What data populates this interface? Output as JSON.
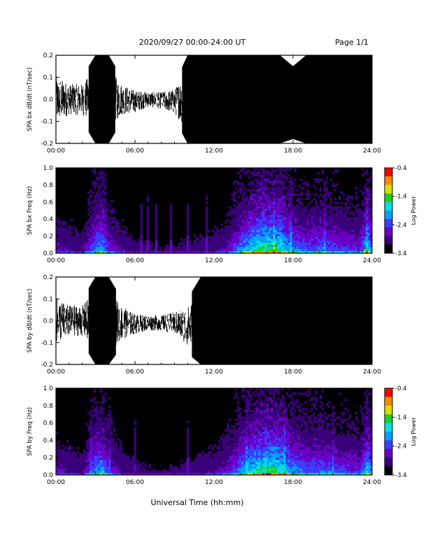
{
  "header": {
    "title": "2020/09/27  00:00-24:00 UT",
    "page": "Page 1/1"
  },
  "footer": {
    "xlabel": "Universal Time (hh:mm)"
  },
  "colors": {
    "waveform": "#000000",
    "spectrogram_background": "#000000",
    "colormap": [
      "#000000",
      "#3a007a",
      "#6a00c8",
      "#3c3cff",
      "#00a0ff",
      "#00e0e0",
      "#20d020",
      "#d8e000",
      "#ff8800",
      "#ff0000"
    ]
  },
  "chart_data": [
    {
      "type": "line",
      "ylabel": "SPA bx dB/dt (nT/sec)",
      "xlim": [
        0,
        24
      ],
      "ylim": [
        -0.2,
        0.2
      ],
      "xticks": [
        "00:00",
        "06:00",
        "12:00",
        "18:00",
        "24:00"
      ],
      "yticks": [
        "0.2",
        "0.1",
        "0.0",
        "-0.1",
        "-0.2"
      ],
      "series": [
        {
          "x_hours": [
            0,
            1,
            2,
            3,
            3.5,
            4,
            5,
            6,
            7,
            8,
            9,
            10,
            11,
            12,
            13,
            14,
            15,
            16,
            17,
            18,
            19,
            20,
            21,
            22,
            23,
            24
          ],
          "envelope_upper": [
            0.15,
            0.1,
            0.1,
            0.2,
            0.2,
            0.2,
            0.1,
            0.06,
            0.05,
            0.05,
            0.07,
            0.2,
            0.2,
            0.2,
            0.2,
            0.2,
            0.2,
            0.2,
            0.2,
            0.15,
            0.2,
            0.2,
            0.2,
            0.2,
            0.2,
            0.2
          ],
          "envelope_lower": [
            -0.15,
            -0.1,
            -0.1,
            -0.2,
            -0.2,
            -0.2,
            -0.1,
            -0.08,
            -0.05,
            -0.06,
            -0.09,
            -0.2,
            -0.2,
            -0.2,
            -0.2,
            -0.2,
            -0.2,
            -0.2,
            -0.2,
            -0.18,
            -0.2,
            -0.2,
            -0.2,
            -0.2,
            -0.2,
            -0.2
          ]
        }
      ]
    },
    {
      "type": "heatmap",
      "ylabel": "SPA bx Freq (Hz)",
      "colorbar_label": "Log Power",
      "xlim": [
        0,
        24
      ],
      "ylim": [
        0,
        1.0
      ],
      "clim": [
        -3.4,
        -0.4
      ],
      "xticks": [
        "00:00",
        "06:00",
        "12:00",
        "18:00",
        "24:00"
      ],
      "yticks": [
        "1.0",
        "0.8",
        "0.6",
        "0.4",
        "0.2",
        "0.0"
      ],
      "colorbar_ticks": [
        "-0.4",
        "-1.4",
        "-2.4",
        "-3.4"
      ],
      "activity_x_hours": [
        0,
        1,
        2,
        3,
        3.5,
        4,
        5,
        6,
        8,
        10,
        12,
        13,
        14,
        15,
        16,
        17,
        18,
        19,
        20,
        21,
        22,
        23,
        23.7,
        24
      ],
      "activity_level": [
        0.3,
        0.25,
        0.2,
        0.6,
        0.7,
        0.4,
        0.25,
        0.15,
        0.1,
        0.15,
        0.2,
        0.3,
        0.6,
        0.8,
        0.9,
        0.85,
        0.6,
        0.5,
        0.55,
        0.5,
        0.45,
        0.4,
        0.8,
        0.5
      ]
    },
    {
      "type": "line",
      "ylabel": "SPA by dB/dt (nT/sec)",
      "xlim": [
        0,
        24
      ],
      "ylim": [
        -0.2,
        0.2
      ],
      "xticks": [
        "00:00",
        "06:00",
        "12:00",
        "18:00",
        "24:00"
      ],
      "yticks": [
        "0.2",
        "0.1",
        "0.0",
        "-0.1",
        "-0.2"
      ],
      "series": [
        {
          "x_hours": [
            0,
            1,
            2,
            3,
            3.5,
            4,
            5,
            6,
            7,
            8,
            9,
            10,
            11,
            12,
            13,
            14,
            15,
            16,
            17,
            18,
            19,
            20,
            21,
            22,
            23,
            24
          ],
          "envelope_upper": [
            0.15,
            0.1,
            0.1,
            0.2,
            0.2,
            0.2,
            0.1,
            0.05,
            0.04,
            0.04,
            0.06,
            0.1,
            0.2,
            0.2,
            0.2,
            0.2,
            0.2,
            0.2,
            0.2,
            0.2,
            0.2,
            0.2,
            0.2,
            0.2,
            0.2,
            0.2
          ],
          "envelope_lower": [
            -0.15,
            -0.1,
            -0.1,
            -0.2,
            -0.2,
            -0.2,
            -0.12,
            -0.08,
            -0.06,
            -0.06,
            -0.08,
            -0.15,
            -0.2,
            -0.2,
            -0.2,
            -0.2,
            -0.2,
            -0.2,
            -0.2,
            -0.2,
            -0.2,
            -0.2,
            -0.2,
            -0.2,
            -0.2,
            -0.2
          ]
        }
      ]
    },
    {
      "type": "heatmap",
      "ylabel": "SPA by Freq (Hz)",
      "colorbar_label": "Log Power",
      "xlim": [
        0,
        24
      ],
      "ylim": [
        0,
        1.0
      ],
      "clim": [
        -3.4,
        -0.4
      ],
      "xticks": [
        "00:00",
        "06:00",
        "12:00",
        "18:00",
        "24:00"
      ],
      "yticks": [
        "1.0",
        "0.8",
        "0.6",
        "0.4",
        "0.2",
        "0.0"
      ],
      "colorbar_ticks": [
        "-0.4",
        "-1.4",
        "-2.4",
        "-3.4"
      ],
      "activity_x_hours": [
        0,
        1,
        2,
        3,
        3.5,
        4,
        5,
        6,
        8,
        10,
        12,
        13,
        14,
        15,
        16,
        17,
        18,
        19,
        20,
        21,
        22,
        23,
        23.7,
        24
      ],
      "activity_level": [
        0.3,
        0.25,
        0.2,
        0.6,
        0.7,
        0.4,
        0.25,
        0.15,
        0.1,
        0.15,
        0.25,
        0.35,
        0.6,
        0.8,
        0.9,
        0.85,
        0.65,
        0.55,
        0.55,
        0.5,
        0.45,
        0.4,
        0.8,
        0.5
      ]
    }
  ]
}
